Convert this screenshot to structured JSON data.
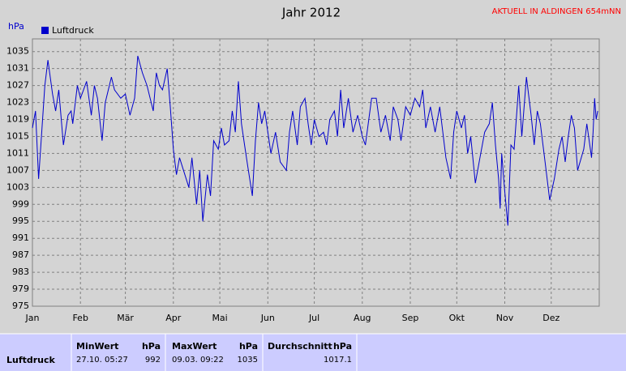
{
  "chart_data": {
    "type": "line",
    "title": "Jahr 2012",
    "annotation": "AKTUELL IN ALDINGEN 654mNN",
    "y_label": "hPa",
    "x": [
      1,
      3,
      5,
      9,
      11,
      14,
      16,
      18,
      21,
      24,
      26,
      27,
      30,
      32,
      34,
      36,
      39,
      41,
      43,
      46,
      48,
      52,
      54,
      58,
      61,
      64,
      67,
      69,
      72,
      75,
      79,
      81,
      83,
      85,
      88,
      90,
      92,
      94,
      96,
      102,
      104,
      107,
      109,
      111,
      114,
      116,
      118,
      121,
      123,
      125,
      128,
      130,
      132,
      134,
      136,
      138,
      140,
      143,
      145,
      147,
      149,
      151,
      153,
      155,
      158,
      161,
      165,
      167,
      169,
      172,
      174,
      177,
      179,
      181,
      183,
      186,
      189,
      191,
      193,
      196,
      198,
      200,
      202,
      205,
      208,
      211,
      214,
      216,
      220,
      223,
      226,
      229,
      232,
      234,
      237,
      239,
      242,
      245,
      248,
      251,
      253,
      255,
      258,
      261,
      264,
      268,
      271,
      273,
      275,
      278,
      280,
      282,
      284,
      287,
      290,
      293,
      296,
      298,
      300,
      302,
      303,
      304,
      306,
      308,
      310,
      312,
      315,
      317,
      320,
      323,
      325,
      327,
      329,
      332,
      335,
      338,
      341,
      343,
      345,
      347,
      349,
      351,
      353,
      357,
      359,
      362,
      363,
      364,
      365,
      366
    ],
    "series": [
      {
        "name": "Luftdruck",
        "color": "#0000cc",
        "values": [
          1017,
          1021,
          1005,
          1027,
          1033,
          1025,
          1021,
          1026,
          1013,
          1020,
          1021,
          1018,
          1027,
          1024,
          1026,
          1028,
          1020,
          1027,
          1024,
          1014,
          1023,
          1029,
          1026,
          1024,
          1025,
          1020,
          1024,
          1034,
          1030,
          1027,
          1021,
          1030,
          1027,
          1026,
          1031,
          1022,
          1012,
          1006,
          1010,
          1003,
          1010,
          999,
          1007,
          995,
          1006,
          1001,
          1014,
          1012,
          1017,
          1013,
          1014,
          1021,
          1016,
          1028,
          1018,
          1013,
          1008,
          1001,
          1014,
          1023,
          1018,
          1021,
          1016,
          1011,
          1016,
          1009,
          1007,
          1016,
          1021,
          1013,
          1022,
          1024,
          1018,
          1013,
          1019,
          1015,
          1016,
          1013,
          1019,
          1021,
          1015,
          1026,
          1017,
          1024,
          1016,
          1020,
          1015,
          1013,
          1024,
          1024,
          1016,
          1020,
          1014,
          1022,
          1019,
          1014,
          1022,
          1020,
          1024,
          1022,
          1026,
          1017,
          1022,
          1016,
          1022,
          1010,
          1005,
          1016,
          1021,
          1017,
          1020,
          1011,
          1015,
          1004,
          1010,
          1016,
          1018,
          1023,
          1013,
          1005,
          998,
          1011,
          1002,
          994,
          1013,
          1012,
          1027,
          1015,
          1029,
          1020,
          1013,
          1021,
          1018,
          1009,
          1000,
          1005,
          1012,
          1015,
          1009,
          1015,
          1020,
          1017,
          1007,
          1012,
          1018,
          1010,
          1016,
          1024,
          1019,
          1021
        ]
      }
    ],
    "xlim": [
      1,
      367
    ],
    "ylim": [
      975,
      1038
    ],
    "xticks": [
      {
        "value": 1,
        "label": "Jan"
      },
      {
        "value": 32,
        "label": "Feb"
      },
      {
        "value": 61,
        "label": "Mär"
      },
      {
        "value": 92,
        "label": "Apr"
      },
      {
        "value": 122,
        "label": "Mai"
      },
      {
        "value": 153,
        "label": "Jun"
      },
      {
        "value": 183,
        "label": "Jul"
      },
      {
        "value": 214,
        "label": "Aug"
      },
      {
        "value": 245,
        "label": "Sep"
      },
      {
        "value": 275,
        "label": "Okt"
      },
      {
        "value": 306,
        "label": "Nov"
      },
      {
        "value": 336,
        "label": "Dez"
      }
    ],
    "yticks": [
      975,
      979,
      983,
      987,
      991,
      995,
      999,
      1003,
      1007,
      1011,
      1015,
      1019,
      1023,
      1027,
      1031,
      1035
    ],
    "grid": true
  },
  "table": {
    "headers": [
      "MinWert",
      "hPa",
      "MaxWert",
      "hPa",
      "Durchschnitt",
      "hPa"
    ],
    "rows": [
      [
        "Luftdruck",
        "27.10.  05:27",
        "992",
        "09.03.  09:22",
        "1035",
        "1017.1"
      ]
    ]
  }
}
